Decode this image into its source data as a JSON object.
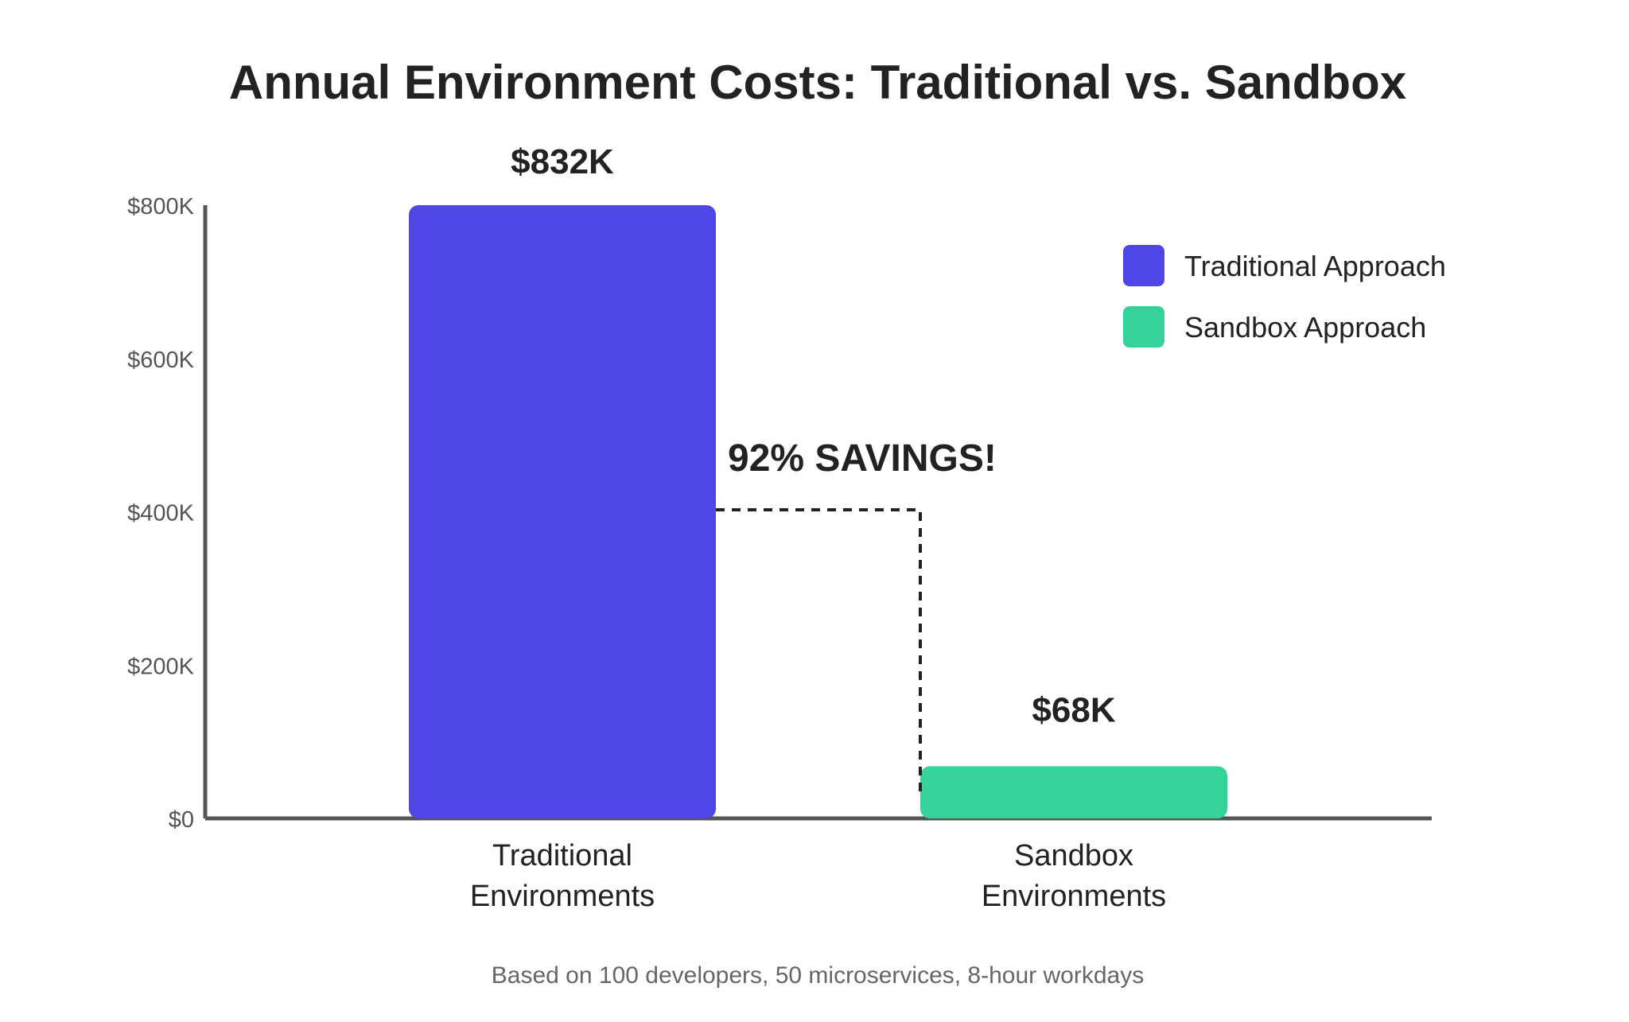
{
  "chart_data": {
    "type": "bar",
    "title": "Annual Environment Costs: Traditional vs. Sandbox",
    "categories": [
      "Traditional\nEnvironments",
      "Sandbox\nEnvironments"
    ],
    "series": [
      {
        "name": "Traditional Approach",
        "values": [
          832000,
          null
        ]
      },
      {
        "name": "Sandbox Approach",
        "values": [
          null,
          68000
        ]
      }
    ],
    "values": [
      832000,
      68000
    ],
    "data_labels": [
      "$832K",
      "$68K"
    ],
    "ylim": [
      0,
      800000
    ],
    "y_ticks": [
      0,
      200000,
      400000,
      600000,
      800000
    ],
    "y_tick_labels": [
      "$0",
      "$200K",
      "$400K",
      "$600K",
      "$800K"
    ],
    "xlabel": "",
    "ylabel": "",
    "grid": false,
    "legend_position": "top-right",
    "annotation": "92% SAVINGS!",
    "footnote": "Based on 100 developers, 50 microservices, 8-hour workdays",
    "colors": {
      "traditional": "#4f46e5",
      "sandbox": "#34d399",
      "axis": "#555555",
      "title": "#222222",
      "tick_label": "#555555",
      "footnote": "#666666"
    }
  }
}
